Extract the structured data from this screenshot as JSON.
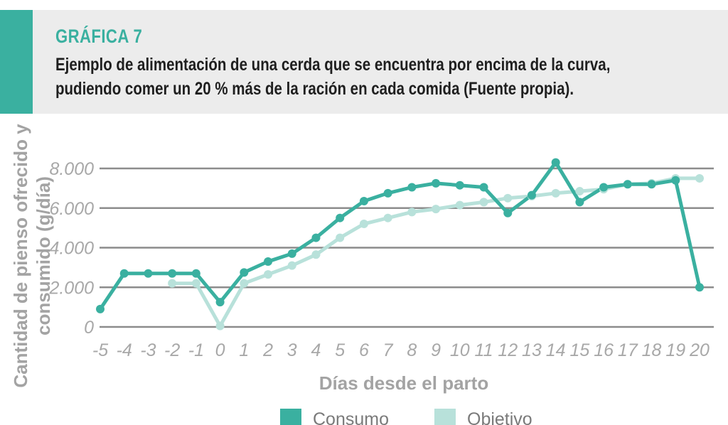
{
  "header": {
    "label": "GRÁFICA 7",
    "title_line1": "Ejemplo de alimentación de una cerda que se encuentra por encima de la curva,",
    "title_line2": "pudiendo comer un 20 % más de la ración en cada comida (Fuente propia)."
  },
  "colors": {
    "accent": "#3ab0a0",
    "consumo": "#3ab0a0",
    "objetivo": "#b8e1da",
    "grid": "#8c8c8c",
    "header_bg": "#ececec"
  },
  "chart_data": {
    "type": "line",
    "xlabel": "Días desde el parto",
    "ylabel_line1": "Cantidad de pienso ofrecido y",
    "ylabel_line2": "consumido (g/día)",
    "ylim": [
      0,
      8000
    ],
    "y_ticks": [
      0,
      2000,
      4000,
      6000,
      8000
    ],
    "y_tick_labels": [
      "0",
      "2.000",
      "4.000",
      "6.000",
      "8.000"
    ],
    "x": [
      -5,
      -4,
      -3,
      -2,
      -1,
      0,
      1,
      2,
      3,
      4,
      5,
      6,
      7,
      8,
      9,
      10,
      11,
      12,
      13,
      14,
      15,
      16,
      17,
      18,
      19,
      20
    ],
    "x_tick_labels": [
      "-5",
      "-4",
      "-3",
      "-2",
      "-1",
      "0",
      "1",
      "2",
      "3",
      "4",
      "5",
      "6",
      "7",
      "8",
      "9",
      "10",
      "11",
      "12",
      "13",
      "14",
      "15",
      "16",
      "17",
      "18",
      "19",
      "20"
    ],
    "grid": true,
    "legend_position": "bottom",
    "series": [
      {
        "name": "Consumo",
        "color": "#3ab0a0",
        "values": [
          900,
          2700,
          2700,
          2700,
          2700,
          1250,
          2750,
          3300,
          3700,
          4500,
          5500,
          6350,
          6750,
          7050,
          7250,
          7150,
          7050,
          5750,
          6650,
          8300,
          6300,
          7050,
          7200,
          7200,
          7400,
          2000
        ]
      },
      {
        "name": "Objetivo",
        "color": "#b8e1da",
        "values": [
          null,
          null,
          null,
          2200,
          2200,
          50,
          2200,
          2650,
          3100,
          3650,
          4500,
          5200,
          5500,
          5800,
          5950,
          6150,
          6300,
          6500,
          6600,
          6750,
          6850,
          6950,
          7200,
          7250,
          7500,
          7500
        ]
      }
    ]
  }
}
